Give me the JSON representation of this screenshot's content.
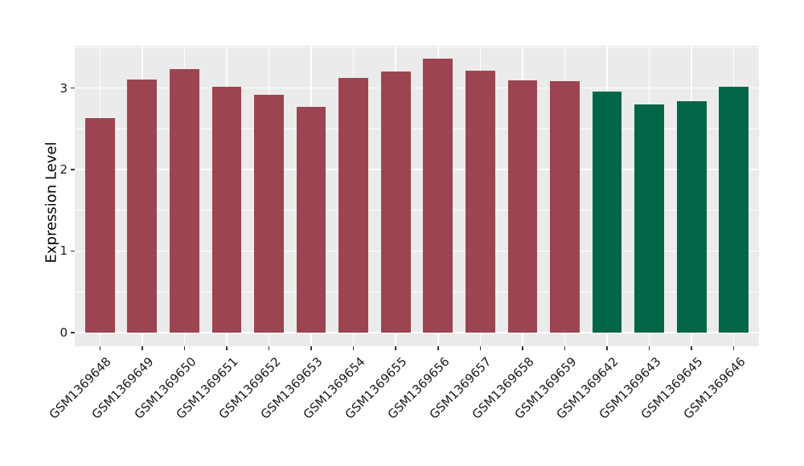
{
  "figure": {
    "background": "#FFFFFF",
    "panel_background": "#EBEBEB",
    "gridline_color": "#FFFFFF",
    "tick_mark_color": "#333333",
    "tick_label_color": "#1a1a1a"
  },
  "chart_data": {
    "type": "bar",
    "title": "",
    "xlabel": "",
    "ylabel": "Expression Level",
    "legend": "none",
    "grid": true,
    "categories": [
      "GSM1369648",
      "GSM1369649",
      "GSM1369650",
      "GSM1369651",
      "GSM1369652",
      "GSM1369653",
      "GSM1369654",
      "GSM1369655",
      "GSM1369656",
      "GSM1369657",
      "GSM1369658",
      "GSM1369659",
      "GSM1369642",
      "GSM1369643",
      "GSM1369645",
      "GSM1369646"
    ],
    "values": [
      2.63,
      3.11,
      3.23,
      3.02,
      2.92,
      2.77,
      3.13,
      3.2,
      3.36,
      3.21,
      3.1,
      3.09,
      2.96,
      2.8,
      2.84,
      3.02
    ],
    "bar_colors": [
      "#9C4452",
      "#9C4452",
      "#9C4452",
      "#9C4452",
      "#9C4452",
      "#9C4452",
      "#9C4452",
      "#9C4452",
      "#9C4452",
      "#9C4452",
      "#9C4452",
      "#9C4452",
      "#006647",
      "#006647",
      "#006647",
      "#006647"
    ],
    "group_colors": {
      "first_group": "#9C4452",
      "second_group": "#006647"
    },
    "ylim": [
      -0.17,
      3.52
    ],
    "yticks": [
      0,
      1,
      2,
      3
    ],
    "yticks_minor": [
      0.5,
      1.5,
      2.5,
      3.5
    ],
    "bar_width_fraction": 0.7
  }
}
